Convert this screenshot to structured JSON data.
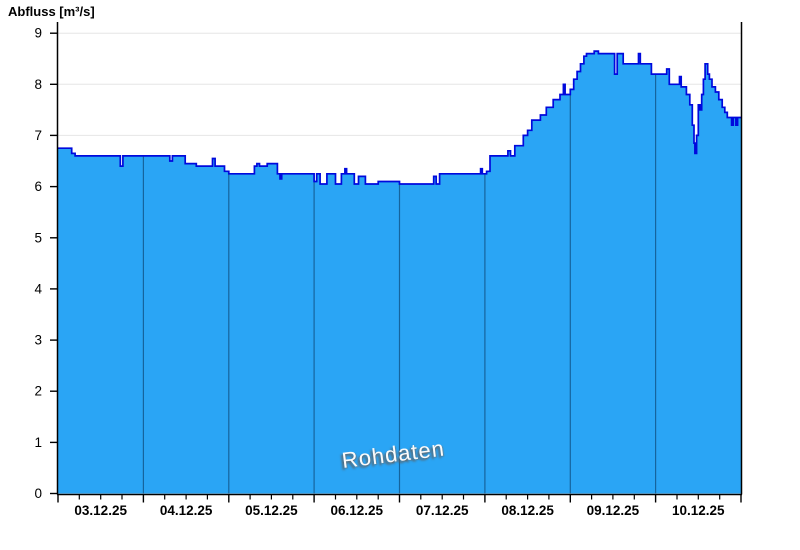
{
  "chart": {
    "title": "Abfluss [m³/s]",
    "watermark": "Rohdaten"
  },
  "chart_data": {
    "type": "area",
    "title": "Abfluss [m³/s]",
    "ylabel": "Abfluss [m³/s]",
    "watermark_label": "Rohdaten",
    "ylim": [
      0,
      9
    ],
    "y_ticks": [
      0,
      1,
      2,
      3,
      4,
      5,
      6,
      7,
      8,
      9
    ],
    "x_labels": [
      "03.12.25",
      "04.12.25",
      "05.12.25",
      "06.12.25",
      "07.12.25",
      "08.12.25",
      "09.12.25",
      "10.12.25"
    ],
    "x_range_days": [
      0,
      8
    ],
    "minor_ticks_per_day": 4,
    "grid": {
      "horizontal_outside_fill": true,
      "vertical_day_lines_inside_fill": true
    },
    "legend_position": "none",
    "colors": {
      "fill": "#2aa5f5",
      "line": "#0009dd",
      "h_grid": "#e6e6e6",
      "v_grid": "rgba(0,35,70,0.50)",
      "axis": "#000000"
    },
    "series": [
      {
        "name": "Rohdaten",
        "step": true,
        "unit": "m³/s",
        "points": [
          [
            0.0,
            6.75
          ],
          [
            0.16,
            6.65
          ],
          [
            0.2,
            6.6
          ],
          [
            0.73,
            6.4
          ],
          [
            0.76,
            6.6
          ],
          [
            1.31,
            6.5
          ],
          [
            1.34,
            6.6
          ],
          [
            1.49,
            6.45
          ],
          [
            1.62,
            6.4
          ],
          [
            1.81,
            6.55
          ],
          [
            1.84,
            6.4
          ],
          [
            1.95,
            6.3
          ],
          [
            2.0,
            6.25
          ],
          [
            2.3,
            6.4
          ],
          [
            2.33,
            6.45
          ],
          [
            2.36,
            6.4
          ],
          [
            2.45,
            6.45
          ],
          [
            2.57,
            6.25
          ],
          [
            2.6,
            6.15
          ],
          [
            2.62,
            6.25
          ],
          [
            3.0,
            6.1
          ],
          [
            3.03,
            6.25
          ],
          [
            3.07,
            6.05
          ],
          [
            3.15,
            6.25
          ],
          [
            3.25,
            6.05
          ],
          [
            3.32,
            6.25
          ],
          [
            3.36,
            6.35
          ],
          [
            3.38,
            6.25
          ],
          [
            3.47,
            6.05
          ],
          [
            3.52,
            6.2
          ],
          [
            3.6,
            6.05
          ],
          [
            3.75,
            6.1
          ],
          [
            4.0,
            6.05
          ],
          [
            4.4,
            6.2
          ],
          [
            4.43,
            6.05
          ],
          [
            4.47,
            6.25
          ],
          [
            4.95,
            6.35
          ],
          [
            4.97,
            6.25
          ],
          [
            5.02,
            6.3
          ],
          [
            5.06,
            6.6
          ],
          [
            5.27,
            6.7
          ],
          [
            5.3,
            6.6
          ],
          [
            5.35,
            6.8
          ],
          [
            5.45,
            7.0
          ],
          [
            5.5,
            7.1
          ],
          [
            5.55,
            7.3
          ],
          [
            5.65,
            7.4
          ],
          [
            5.72,
            7.55
          ],
          [
            5.8,
            7.7
          ],
          [
            5.88,
            7.8
          ],
          [
            5.92,
            8.0
          ],
          [
            5.94,
            7.8
          ],
          [
            6.0,
            7.9
          ],
          [
            6.04,
            8.1
          ],
          [
            6.08,
            8.25
          ],
          [
            6.12,
            8.4
          ],
          [
            6.16,
            8.55
          ],
          [
            6.19,
            8.6
          ],
          [
            6.28,
            8.65
          ],
          [
            6.33,
            8.6
          ],
          [
            6.52,
            8.2
          ],
          [
            6.55,
            8.6
          ],
          [
            6.62,
            8.4
          ],
          [
            6.78,
            8.4
          ],
          [
            6.8,
            8.6
          ],
          [
            6.82,
            8.4
          ],
          [
            6.95,
            8.2
          ],
          [
            7.1,
            8.2
          ],
          [
            7.13,
            8.3
          ],
          [
            7.16,
            8.0
          ],
          [
            7.28,
            8.15
          ],
          [
            7.3,
            7.95
          ],
          [
            7.36,
            7.8
          ],
          [
            7.4,
            7.6
          ],
          [
            7.43,
            7.2
          ],
          [
            7.45,
            6.85
          ],
          [
            7.46,
            6.65
          ],
          [
            7.48,
            7.0
          ],
          [
            7.5,
            7.6
          ],
          [
            7.52,
            7.5
          ],
          [
            7.54,
            7.8
          ],
          [
            7.56,
            8.1
          ],
          [
            7.58,
            8.4
          ],
          [
            7.61,
            8.2
          ],
          [
            7.63,
            8.1
          ],
          [
            7.66,
            7.95
          ],
          [
            7.7,
            7.85
          ],
          [
            7.74,
            7.7
          ],
          [
            7.78,
            7.55
          ],
          [
            7.81,
            7.45
          ],
          [
            7.84,
            7.35
          ],
          [
            7.89,
            7.2
          ],
          [
            7.91,
            7.35
          ],
          [
            7.94,
            7.2
          ],
          [
            7.96,
            7.35
          ],
          [
            8.0,
            7.35
          ]
        ]
      }
    ]
  }
}
